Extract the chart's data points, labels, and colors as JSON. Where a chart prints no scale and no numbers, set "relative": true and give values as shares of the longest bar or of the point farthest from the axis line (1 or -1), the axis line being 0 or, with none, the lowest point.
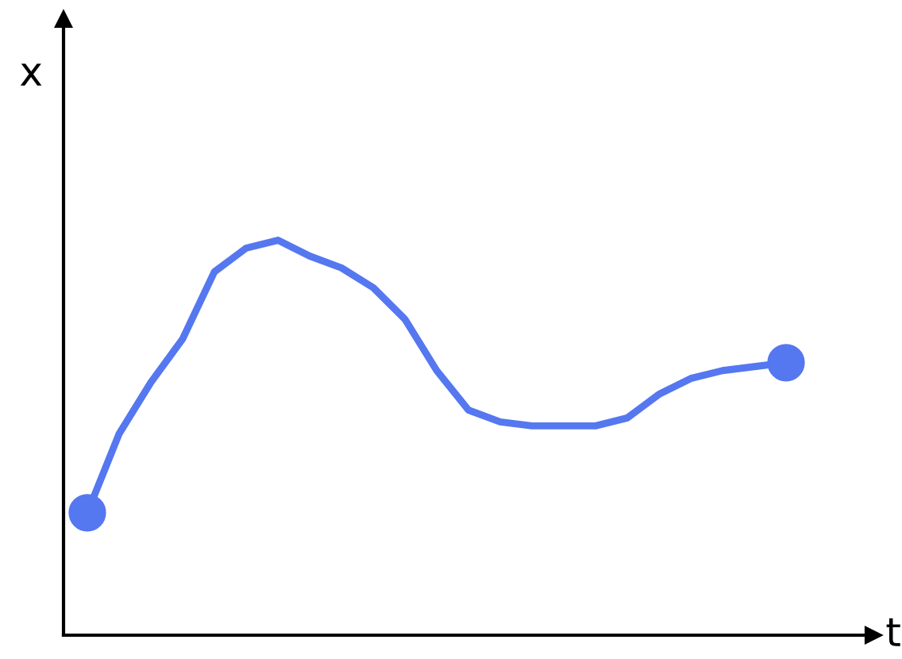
{
  "chart_data": {
    "type": "line",
    "relative": true,
    "xlabel": "t",
    "ylabel": "x",
    "categories": [
      null,
      null,
      null,
      null,
      null,
      null,
      null,
      null,
      null,
      null,
      null,
      null,
      null,
      null,
      null,
      null,
      null,
      null,
      null,
      null,
      null,
      null,
      null
    ],
    "series": [
      {
        "color": "#5577f0",
        "values": [
          0.31,
          0.51,
          0.64,
          0.75,
          0.92,
          0.98,
          1.0,
          0.96,
          0.93,
          0.88,
          0.8,
          0.67,
          0.57,
          0.54,
          0.53,
          0.53,
          0.53,
          0.55,
          0.61,
          0.65,
          0.67,
          0.68,
          0.69
        ]
      }
    ],
    "grid": false,
    "legend": false
  }
}
